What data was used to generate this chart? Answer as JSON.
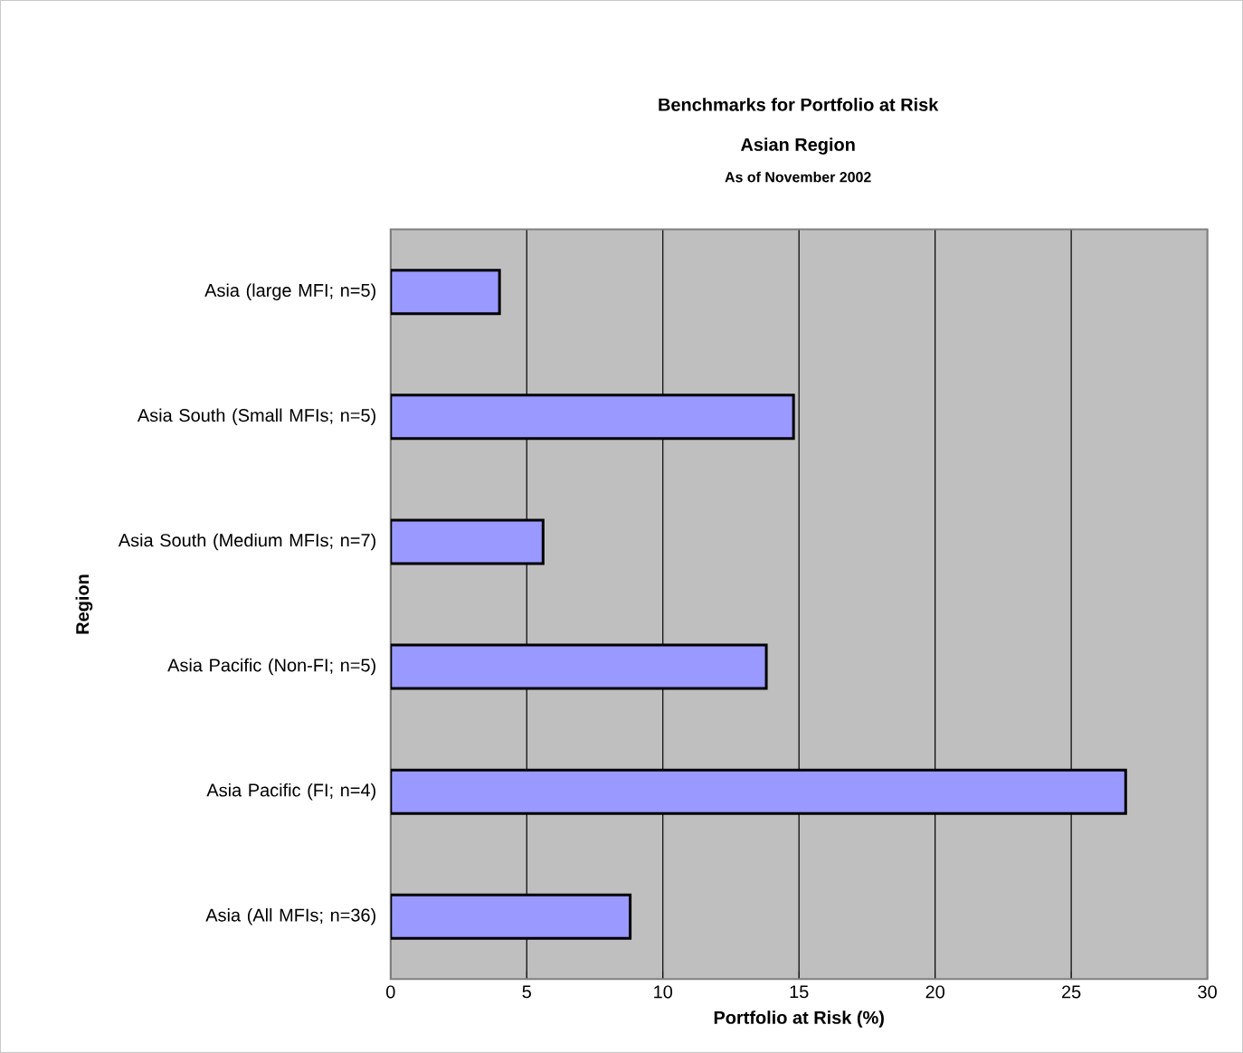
{
  "chart_data": {
    "type": "bar",
    "orientation": "horizontal",
    "title": "Benchmarks for Portfolio at Risk",
    "subtitle": "Asian Region",
    "annotations": [
      "As of November 2002"
    ],
    "xlabel": "Portfolio at Risk (%)",
    "ylabel": "Region",
    "categories": [
      "Asia (large MFI; n=5)",
      "Asia South (Small MFIs; n=5)",
      "Asia South (Medium MFIs; n=7)",
      "Asia Pacific (Non-FI; n=5)",
      "Asia Pacific (FI; n=4)",
      "Asia (All MFIs; n=36)"
    ],
    "values": [
      4.0,
      14.8,
      5.6,
      13.8,
      27.0,
      8.8
    ],
    "color": "#9999ff",
    "xlim": [
      0,
      30
    ],
    "xticks": [
      0,
      5,
      10,
      15,
      20,
      25,
      30
    ],
    "grid": "x"
  }
}
